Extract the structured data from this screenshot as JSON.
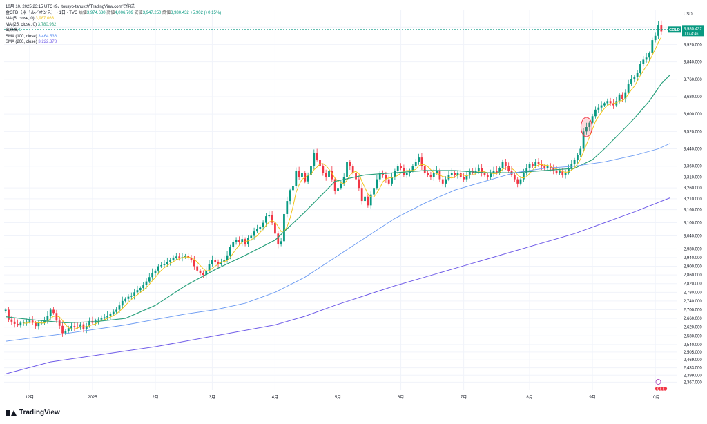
{
  "header": {
    "title": "10月 10, 2025 23:15 UTC+9、tousyo-tanukiがTradingView.comで作成",
    "symbol": "金CFD（米ドル／オンス） · 1日 · TVC",
    "open_label": "始値",
    "open": "3,974.680",
    "high_label": "高値",
    "high": "4,006.709",
    "low_label": "安値",
    "low": "3,947.250",
    "close_label": "終値",
    "close": "3,980.432",
    "change": "+5.902 (+0.15%)",
    "indicators": [
      {
        "label": "MA (5, close, 0)",
        "value": "3,987.063",
        "color": "#f0c419"
      },
      {
        "label": "MA (25, close, 0)",
        "value": "3,780.932",
        "color": "#2ba17d"
      },
      {
        "label": "出来高",
        "value": "0",
        "color": "#26a69a"
      },
      {
        "label": "SMA (100, close)",
        "value": "3,464.536",
        "color": "#5b8ef0"
      },
      {
        "label": "SMA (200, close)",
        "value": "3,222.378",
        "color": "#6f5be8"
      }
    ]
  },
  "footer": {
    "brand": "TradingView"
  },
  "colors": {
    "up": "#089981",
    "down": "#f23645",
    "ma5": "#f0c419",
    "ma25": "#2ba17d",
    "sma100": "#6a9af2",
    "sma200": "#6f5be8",
    "price_line": "#089981"
  },
  "chart_data": {
    "type": "candlestick",
    "currency": "USD",
    "symbol_tag": "GOLD",
    "last_price": "3,980.432",
    "countdown": "00:44:46",
    "ylim": [
      2330,
      4080
    ],
    "y_ticks": [
      "4,000.000",
      "3,920.000",
      "3,840.000",
      "3,760.000",
      "3,680.000",
      "3,600.000",
      "3,520.000",
      "3,440.000",
      "3,360.000",
      "3,310.000",
      "3,260.000",
      "3,210.000",
      "3,160.000",
      "3,100.000",
      "3,040.000",
      "2,980.000",
      "2,940.000",
      "2,900.000",
      "2,860.000",
      "2,820.000",
      "2,780.000",
      "2,740.000",
      "2,700.000",
      "2,660.000",
      "2,620.000",
      "2,580.000",
      "2,540.000",
      "2,505.000",
      "2,469.000",
      "2,433.000",
      "2,399.000",
      "2,367.000"
    ],
    "x_ticks": [
      {
        "label": "12月",
        "i": 8
      },
      {
        "label": "2025",
        "i": 29
      },
      {
        "label": "2月",
        "i": 50
      },
      {
        "label": "3月",
        "i": 69
      },
      {
        "label": "4月",
        "i": 90
      },
      {
        "label": "5月",
        "i": 111
      },
      {
        "label": "6月",
        "i": 132
      },
      {
        "label": "7月",
        "i": 153
      },
      {
        "label": "8月",
        "i": 175
      },
      {
        "label": "9月",
        "i": 196
      },
      {
        "label": "10月",
        "i": 217
      }
    ],
    "closes": [
      2700,
      2655,
      2645,
      2635,
      2628,
      2640,
      2643,
      2645,
      2650,
      2640,
      2625,
      2640,
      2640,
      2650,
      2672,
      2700,
      2685,
      2650,
      2626,
      2592,
      2602,
      2615,
      2625,
      2620,
      2618,
      2633,
      2610,
      2625,
      2648,
      2640,
      2650,
      2655,
      2660,
      2665,
      2672,
      2680,
      2690,
      2700,
      2720,
      2740,
      2750,
      2760,
      2765,
      2780,
      2790,
      2800,
      2815,
      2830,
      2850,
      2870,
      2880,
      2900,
      2905,
      2910,
      2920,
      2930,
      2940,
      2945,
      2940,
      2942,
      2948,
      2938,
      2930,
      2900,
      2880,
      2870,
      2860,
      2880,
      2910,
      2930,
      2920,
      2910,
      2920,
      2930,
      2950,
      2990,
      3010,
      3020,
      3010,
      3025,
      3000,
      3030,
      3040,
      3060,
      3070,
      3080,
      3100,
      3130,
      3135,
      3100,
      3050,
      3000,
      3015,
      3140,
      3200,
      3250,
      3270,
      3340,
      3310,
      3330,
      3290,
      3320,
      3360,
      3420,
      3390,
      3360,
      3330,
      3310,
      3340,
      3300,
      3245,
      3260,
      3280,
      3310,
      3380,
      3360,
      3330,
      3300,
      3260,
      3200,
      3220,
      3180,
      3230,
      3260,
      3300,
      3330,
      3320,
      3300,
      3280,
      3310,
      3340,
      3360,
      3350,
      3320,
      3330,
      3340,
      3360,
      3380,
      3400,
      3360,
      3330,
      3320,
      3310,
      3330,
      3340,
      3300,
      3280,
      3300,
      3320,
      3330,
      3320,
      3330,
      3310,
      3300,
      3320,
      3340,
      3330,
      3340,
      3350,
      3330,
      3320,
      3310,
      3330,
      3340,
      3330,
      3350,
      3380,
      3360,
      3340,
      3320,
      3300,
      3280,
      3300,
      3330,
      3350,
      3370,
      3360,
      3380,
      3370,
      3360,
      3350,
      3360,
      3350,
      3340,
      3330,
      3340,
      3320,
      3330,
      3350,
      3370,
      3390,
      3410,
      3440,
      3520,
      3540,
      3560,
      3590,
      3620,
      3630,
      3640,
      3650,
      3660,
      3650,
      3640,
      3660,
      3690,
      3670,
      3700,
      3740,
      3760,
      3770,
      3790,
      3830,
      3850,
      3860,
      3880,
      3940,
      3960,
      4010,
      3980
    ],
    "ma5_start": 6,
    "ma25": [
      [
        0,
        2668
      ],
      [
        8,
        2655
      ],
      [
        20,
        2640
      ],
      [
        30,
        2645
      ],
      [
        40,
        2660
      ],
      [
        50,
        2720
      ],
      [
        60,
        2810
      ],
      [
        70,
        2885
      ],
      [
        80,
        2950
      ],
      [
        90,
        3020
      ],
      [
        100,
        3150
      ],
      [
        110,
        3290
      ],
      [
        120,
        3320
      ],
      [
        130,
        3330
      ],
      [
        140,
        3340
      ],
      [
        150,
        3340
      ],
      [
        160,
        3330
      ],
      [
        170,
        3330
      ],
      [
        180,
        3340
      ],
      [
        190,
        3350
      ],
      [
        196,
        3390
      ],
      [
        200,
        3440
      ],
      [
        205,
        3510
      ],
      [
        210,
        3580
      ],
      [
        215,
        3660
      ],
      [
        219,
        3740
      ],
      [
        222,
        3781
      ]
    ],
    "sma100": [
      [
        0,
        2555
      ],
      [
        20,
        2590
      ],
      [
        40,
        2630
      ],
      [
        60,
        2680
      ],
      [
        70,
        2700
      ],
      [
        80,
        2730
      ],
      [
        90,
        2780
      ],
      [
        100,
        2850
      ],
      [
        110,
        2940
      ],
      [
        120,
        3030
      ],
      [
        130,
        3120
      ],
      [
        140,
        3190
      ],
      [
        150,
        3250
      ],
      [
        160,
        3290
      ],
      [
        170,
        3330
      ],
      [
        180,
        3350
      ],
      [
        190,
        3360
      ],
      [
        200,
        3380
      ],
      [
        210,
        3410
      ],
      [
        218,
        3440
      ],
      [
        222,
        3465
      ]
    ],
    "sma200": [
      [
        0,
        2405
      ],
      [
        15,
        2460
      ],
      [
        30,
        2490
      ],
      [
        50,
        2530
      ],
      [
        70,
        2580
      ],
      [
        90,
        2630
      ],
      [
        100,
        2670
      ],
      [
        110,
        2720
      ],
      [
        120,
        2765
      ],
      [
        130,
        2810
      ],
      [
        140,
        2850
      ],
      [
        150,
        2890
      ],
      [
        160,
        2930
      ],
      [
        170,
        2970
      ],
      [
        180,
        3010
      ],
      [
        190,
        3050
      ],
      [
        200,
        3100
      ],
      [
        210,
        3150
      ],
      [
        222,
        3215
      ]
    ],
    "price_line_value": 3990,
    "reference_line_value": 2528,
    "highlight_index": 194
  }
}
